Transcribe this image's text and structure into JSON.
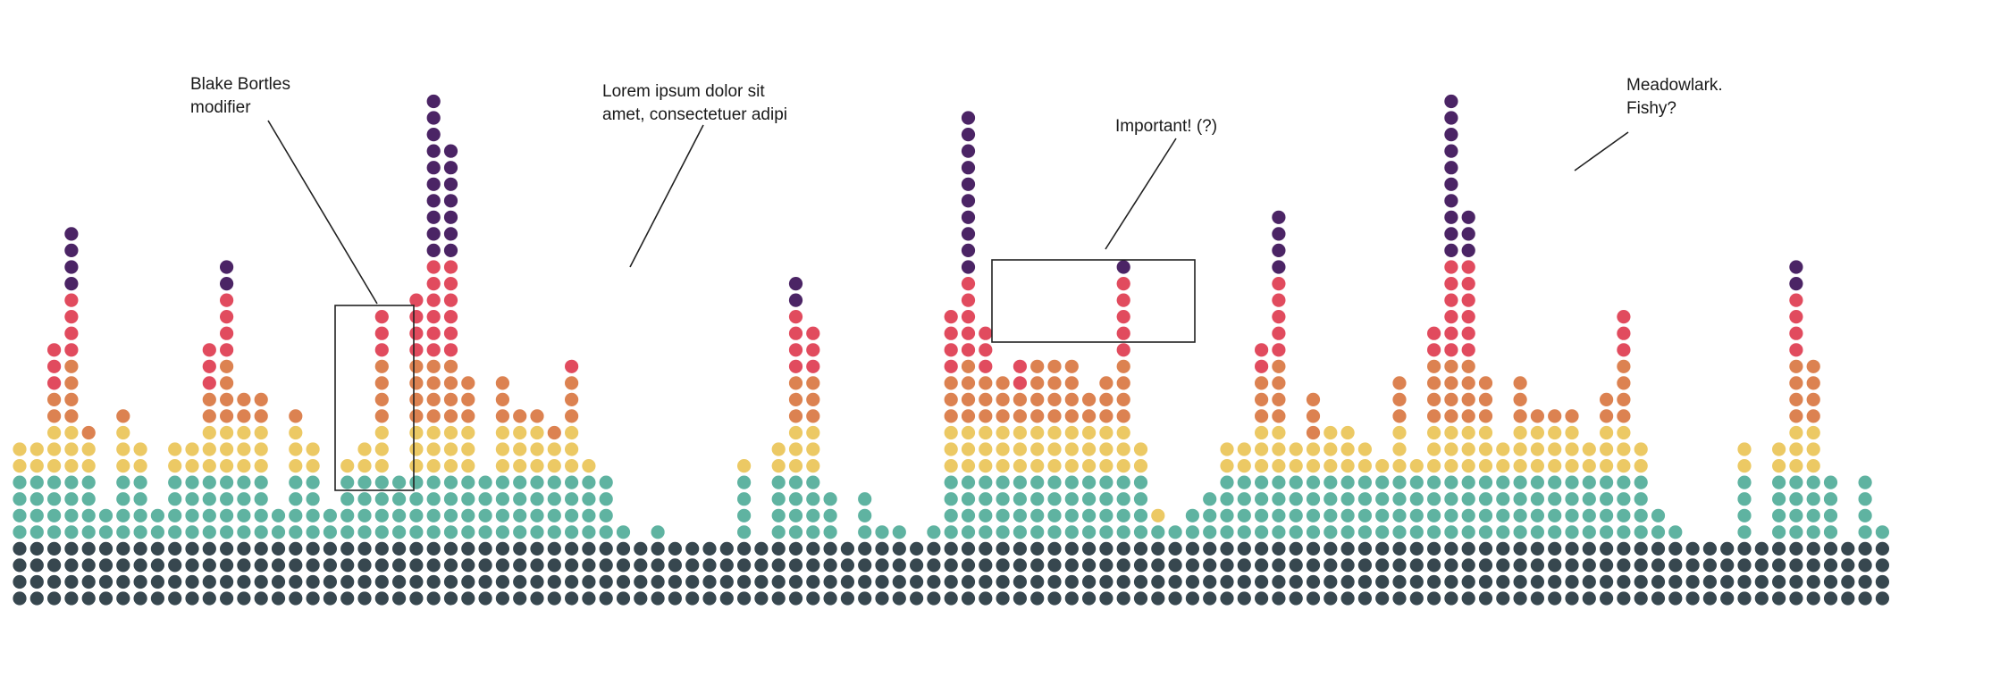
{
  "chart_data": {
    "type": "dot-column",
    "title": "",
    "xlabel": "",
    "ylabel": "",
    "grid": false,
    "legend": "none",
    "series": [
      {
        "color": "#37474f"
      },
      {
        "color": "#5fb3a1"
      },
      {
        "color": "#ecc964"
      },
      {
        "color": "#dc8251"
      },
      {
        "color": "#e14b5e"
      },
      {
        "color": "#4b2465"
      }
    ],
    "columns": [
      [
        4,
        4,
        2,
        0,
        0,
        0
      ],
      [
        4,
        4,
        2,
        0,
        0,
        0
      ],
      [
        4,
        4,
        3,
        2,
        3,
        0
      ],
      [
        4,
        4,
        3,
        4,
        4,
        4
      ],
      [
        4,
        4,
        2,
        1,
        0,
        0
      ],
      [
        4,
        2,
        0,
        0,
        0,
        0
      ],
      [
        4,
        4,
        3,
        1,
        0,
        0
      ],
      [
        4,
        4,
        2,
        0,
        0,
        0
      ],
      [
        4,
        2,
        0,
        0,
        0,
        0
      ],
      [
        4,
        4,
        2,
        0,
        0,
        0
      ],
      [
        4,
        4,
        2,
        0,
        0,
        0
      ],
      [
        4,
        4,
        3,
        2,
        3,
        0
      ],
      [
        4,
        4,
        3,
        4,
        4,
        2
      ],
      [
        4,
        4,
        3,
        2,
        0,
        0
      ],
      [
        4,
        4,
        3,
        2,
        0,
        0
      ],
      [
        4,
        2,
        0,
        0,
        0,
        0
      ],
      [
        4,
        4,
        3,
        1,
        0,
        0
      ],
      [
        4,
        4,
        2,
        0,
        0,
        0
      ],
      [
        4,
        2,
        0,
        0,
        0,
        0
      ],
      [
        4,
        4,
        1,
        0,
        0,
        0
      ],
      [
        4,
        4,
        2,
        0,
        0,
        0
      ],
      [
        4,
        4,
        3,
        4,
        3,
        0
      ],
      [
        4,
        4,
        0,
        0,
        0,
        0
      ],
      [
        4,
        4,
        3,
        4,
        4,
        0
      ],
      [
        4,
        4,
        3,
        4,
        6,
        10
      ],
      [
        4,
        4,
        3,
        4,
        6,
        7
      ],
      [
        4,
        4,
        3,
        3,
        0,
        0
      ],
      [
        4,
        4,
        0,
        0,
        0,
        0
      ],
      [
        4,
        4,
        3,
        3,
        0,
        0
      ],
      [
        4,
        4,
        3,
        1,
        0,
        0
      ],
      [
        4,
        4,
        3,
        1,
        0,
        0
      ],
      [
        4,
        4,
        2,
        1,
        0,
        0
      ],
      [
        4,
        4,
        3,
        3,
        1,
        0
      ],
      [
        4,
        4,
        1,
        0,
        0,
        0
      ],
      [
        4,
        4,
        0,
        0,
        0,
        0
      ],
      [
        4,
        1,
        0,
        0,
        0,
        0
      ],
      [
        4,
        0,
        0,
        0,
        0,
        0
      ],
      [
        4,
        1,
        0,
        0,
        0,
        0
      ],
      [
        4,
        0,
        0,
        0,
        0,
        0
      ],
      [
        4,
        0,
        0,
        0,
        0,
        0
      ],
      [
        4,
        0,
        0,
        0,
        0,
        0
      ],
      [
        4,
        0,
        0,
        0,
        0,
        0
      ],
      [
        4,
        4,
        1,
        0,
        0,
        0
      ],
      [
        4,
        0,
        0,
        0,
        0,
        0
      ],
      [
        4,
        4,
        2,
        0,
        0,
        0
      ],
      [
        4,
        4,
        3,
        3,
        4,
        2
      ],
      [
        4,
        4,
        3,
        3,
        3,
        0
      ],
      [
        4,
        3,
        0,
        0,
        0,
        0
      ],
      [
        4,
        0,
        0,
        0,
        0,
        0
      ],
      [
        4,
        3,
        0,
        0,
        0,
        0
      ],
      [
        4,
        1,
        0,
        0,
        0,
        0
      ],
      [
        4,
        1,
        0,
        0,
        0,
        0
      ],
      [
        4,
        0,
        0,
        0,
        0,
        0
      ],
      [
        4,
        1,
        0,
        0,
        0,
        0
      ],
      [
        4,
        4,
        3,
        3,
        4,
        0
      ],
      [
        4,
        4,
        3,
        4,
        5,
        10
      ],
      [
        4,
        4,
        3,
        3,
        3,
        0
      ],
      [
        4,
        4,
        3,
        3,
        0,
        0
      ],
      [
        4,
        4,
        3,
        2,
        2,
        0
      ],
      [
        4,
        4,
        3,
        4,
        0,
        0
      ],
      [
        4,
        4,
        3,
        4,
        0,
        0
      ],
      [
        4,
        4,
        3,
        4,
        0,
        0
      ],
      [
        4,
        4,
        3,
        2,
        0,
        0
      ],
      [
        4,
        4,
        3,
        3,
        0,
        0
      ],
      [
        4,
        4,
        3,
        4,
        5,
        1
      ],
      [
        4,
        4,
        2,
        0,
        0,
        0
      ],
      [
        4,
        1,
        1,
        0,
        0,
        0
      ],
      [
        4,
        1,
        0,
        0,
        0,
        0
      ],
      [
        4,
        2,
        0,
        0,
        0,
        0
      ],
      [
        4,
        3,
        0,
        0,
        0,
        0
      ],
      [
        4,
        4,
        2,
        0,
        0,
        0
      ],
      [
        4,
        4,
        2,
        0,
        0,
        0
      ],
      [
        4,
        4,
        3,
        3,
        2,
        0
      ],
      [
        4,
        4,
        3,
        4,
        5,
        4
      ],
      [
        4,
        4,
        2,
        0,
        0,
        0
      ],
      [
        4,
        4,
        2,
        3,
        0,
        0
      ],
      [
        4,
        4,
        3,
        0,
        0,
        0
      ],
      [
        4,
        4,
        3,
        0,
        0,
        0
      ],
      [
        4,
        4,
        2,
        0,
        0,
        0
      ],
      [
        4,
        4,
        1,
        0,
        0,
        0
      ],
      [
        4,
        4,
        3,
        3,
        0,
        0
      ],
      [
        4,
        4,
        1,
        0,
        0,
        0
      ],
      [
        4,
        4,
        3,
        4,
        2,
        0
      ],
      [
        4,
        4,
        3,
        4,
        6,
        10
      ],
      [
        4,
        4,
        3,
        4,
        6,
        3
      ],
      [
        4,
        4,
        3,
        3,
        0,
        0
      ],
      [
        4,
        4,
        2,
        0,
        0,
        0
      ],
      [
        4,
        4,
        3,
        3,
        0,
        0
      ],
      [
        4,
        4,
        3,
        1,
        0,
        0
      ],
      [
        4,
        4,
        3,
        1,
        0,
        0
      ],
      [
        4,
        4,
        3,
        1,
        0,
        0
      ],
      [
        4,
        4,
        2,
        0,
        0,
        0
      ],
      [
        4,
        4,
        3,
        2,
        0,
        0
      ],
      [
        4,
        4,
        3,
        4,
        3,
        0
      ],
      [
        4,
        4,
        2,
        0,
        0,
        0
      ],
      [
        4,
        2,
        0,
        0,
        0,
        0
      ],
      [
        4,
        1,
        0,
        0,
        0,
        0
      ],
      [
        4,
        0,
        0,
        0,
        0,
        0
      ],
      [
        4,
        0,
        0,
        0,
        0,
        0
      ],
      [
        4,
        0,
        0,
        0,
        0,
        0
      ],
      [
        4,
        4,
        2,
        0,
        0,
        0
      ],
      [
        4,
        0,
        0,
        0,
        0,
        0
      ],
      [
        4,
        4,
        2,
        0,
        0,
        0
      ],
      [
        4,
        4,
        3,
        4,
        4,
        2
      ],
      [
        4,
        4,
        3,
        4,
        0,
        0
      ],
      [
        4,
        4,
        0,
        0,
        0,
        0
      ],
      [
        4,
        0,
        0,
        0,
        0,
        0
      ],
      [
        4,
        4,
        0,
        0,
        0,
        0
      ],
      [
        4,
        1,
        0,
        0,
        0,
        0
      ]
    ]
  },
  "annotations": [
    {
      "lines": [
        "Blake Bortles",
        "modifier"
      ]
    },
    {
      "lines": [
        "Lorem ipsum dolor sit",
        "amet, consectetuer adipi"
      ]
    },
    {
      "lines": [
        "Important! (?)"
      ]
    },
    {
      "lines": [
        "Meadowlark.",
        "Fishy?"
      ]
    }
  ]
}
